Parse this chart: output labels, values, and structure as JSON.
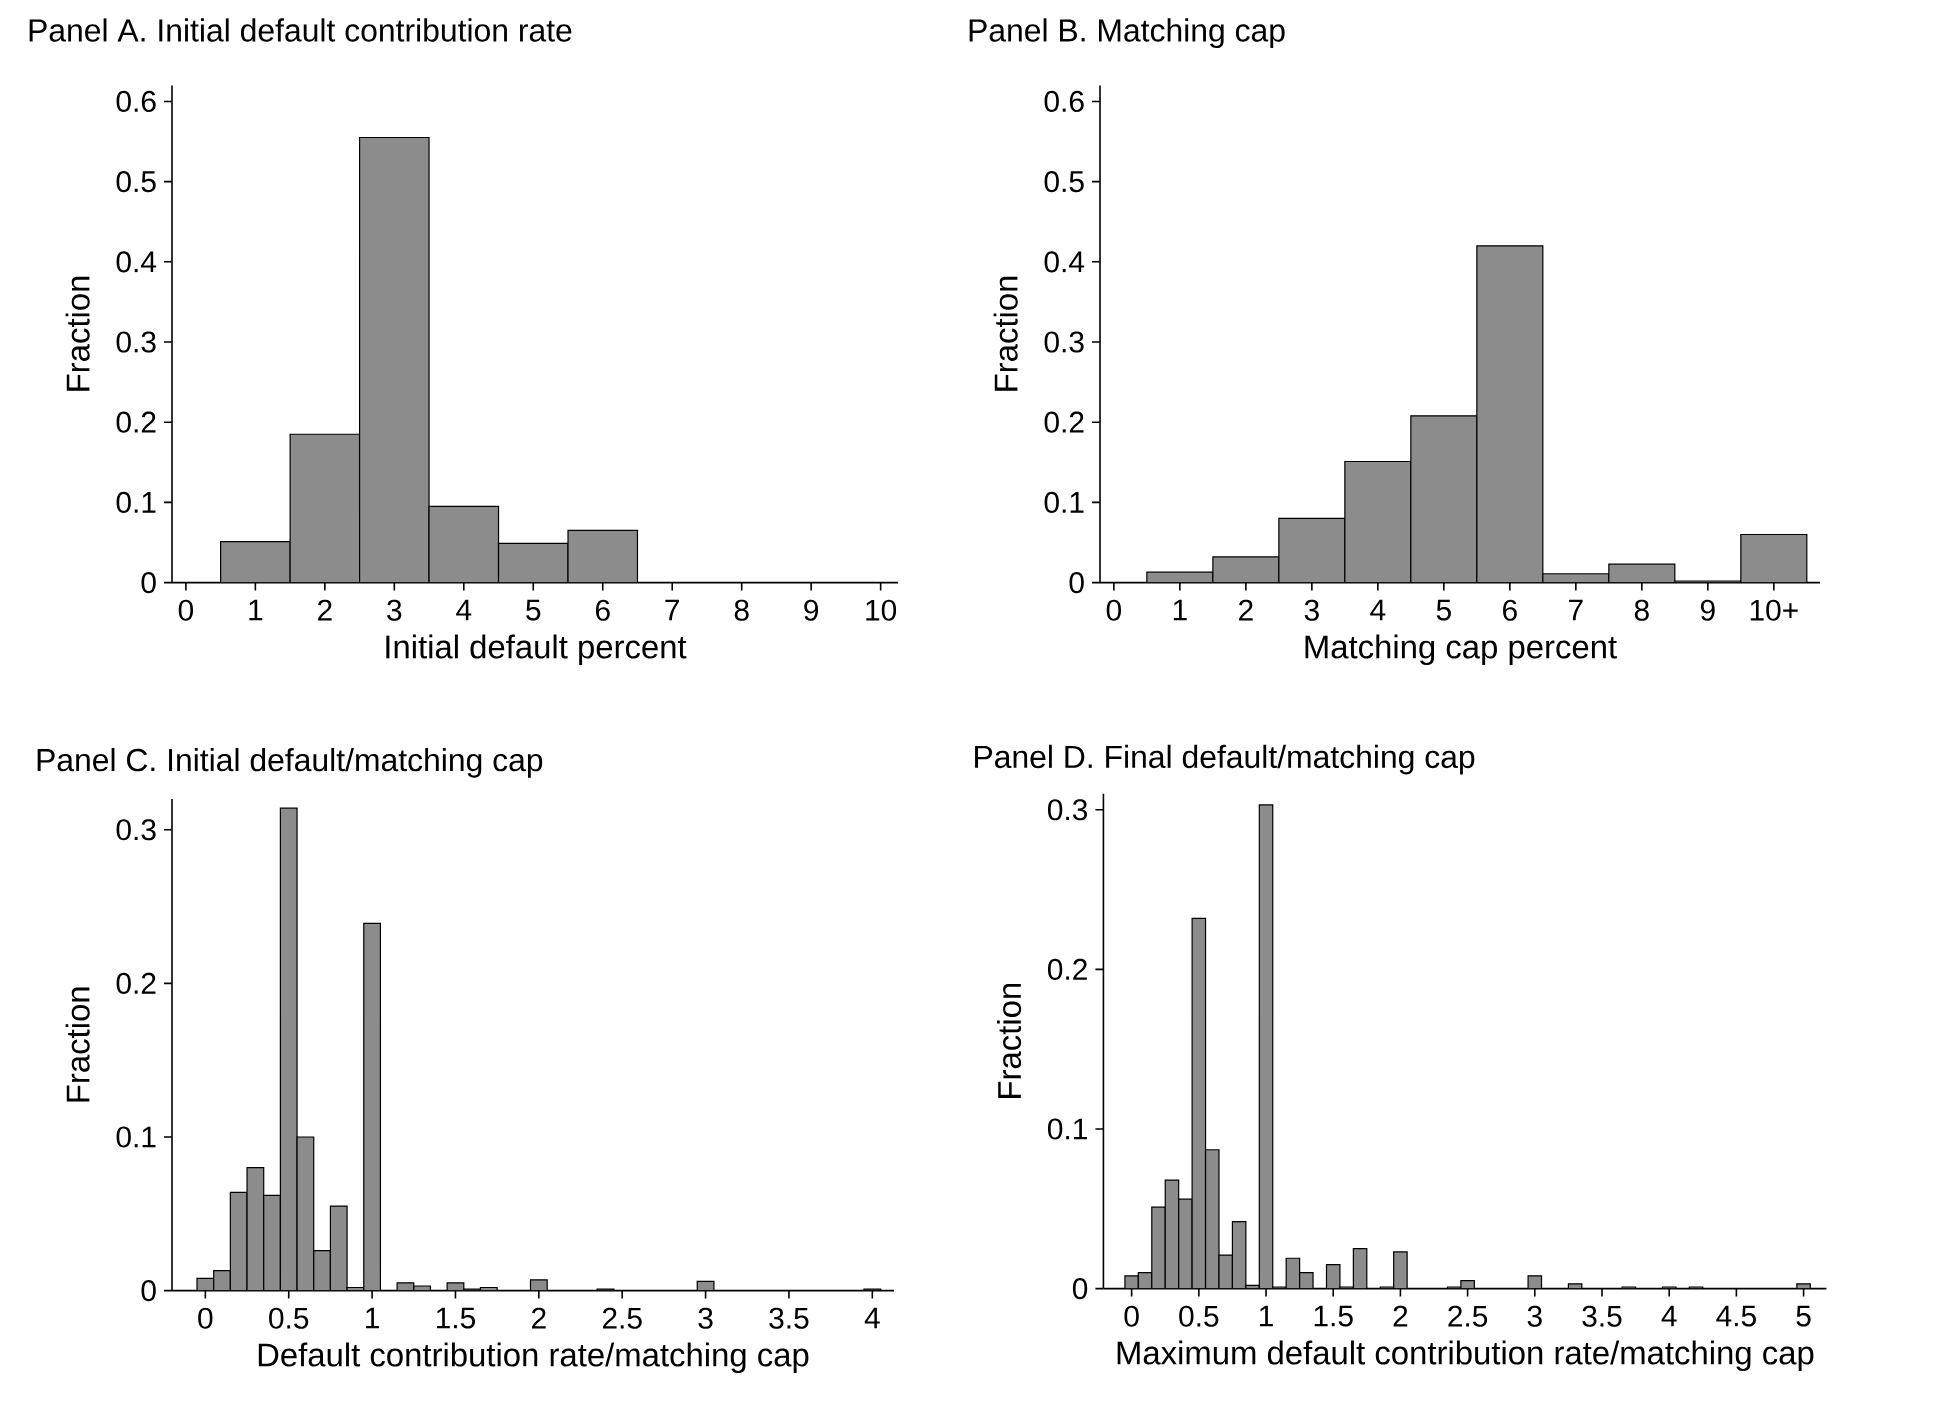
{
  "chart_data": [
    {
      "type": "histogram",
      "title": "Panel A. Initial default contribution rate",
      "xlabel": "Initial default percent",
      "ylabel": "Fraction",
      "color": "#8c8c8c",
      "bins": [
        0.5,
        1.5,
        2.5,
        3.5,
        4.5,
        5.5,
        6.5
      ],
      "values": [
        0.051,
        0.185,
        0.555,
        0.095,
        0.049,
        0.065
      ],
      "xlim": [
        -0.2,
        10.25
      ],
      "ylim": [
        0,
        0.62
      ],
      "xticks": [
        0,
        1,
        2,
        3,
        4,
        5,
        6,
        7,
        8,
        9,
        10
      ],
      "yticks": [
        0,
        0.1,
        0.2,
        0.3,
        0.4,
        0.5,
        0.6
      ]
    },
    {
      "type": "histogram",
      "title": "Panel B. Matching cap",
      "xlabel": "Matching cap percent",
      "ylabel": "Fraction",
      "color": "#8c8c8c",
      "bins": [
        0.5,
        1.5,
        2.5,
        3.5,
        4.5,
        5.5,
        6.5,
        7.5,
        8.5,
        9.5,
        10.5
      ],
      "values": [
        0.013,
        0.032,
        0.08,
        0.151,
        0.208,
        0.42,
        0.011,
        0.023,
        0.002,
        0.06
      ],
      "xlim": [
        -0.21,
        10.7
      ],
      "ylim": [
        0,
        0.62
      ],
      "xticks": [
        0,
        1,
        2,
        3,
        4,
        5,
        6,
        7,
        8,
        9,
        {
          "value": 10,
          "label": "10+"
        }
      ],
      "yticks": [
        0,
        0.1,
        0.2,
        0.3,
        0.4,
        0.5,
        0.6
      ]
    },
    {
      "type": "histogram",
      "title": "Panel C. Initial default/matching cap",
      "xlabel": "Default contribution rate/matching cap",
      "ylabel": "Fraction",
      "color": "#8c8c8c",
      "bins": [
        -0.05,
        0.05,
        0.15,
        0.25,
        0.35,
        0.45,
        0.55,
        0.65,
        0.75,
        0.85,
        0.95,
        1.05,
        1.15,
        1.25,
        1.35,
        1.45,
        1.55,
        1.65,
        1.75,
        1.85,
        1.95,
        2.05,
        2.15,
        2.25,
        2.35,
        2.45,
        2.55,
        2.65,
        2.75,
        2.85,
        2.95,
        3.05,
        3.15,
        3.25,
        3.35,
        3.45,
        3.55,
        3.65,
        3.75,
        3.85,
        3.95,
        4.05
      ],
      "values": [
        0.008,
        0.013,
        0.064,
        0.08,
        0.062,
        0.314,
        0.1,
        0.026,
        0.055,
        0.002,
        0.239,
        0,
        0.005,
        0.003,
        0,
        0.005,
        0.001,
        0.002,
        0,
        0,
        0.007,
        0,
        0,
        0,
        0.001,
        0,
        0,
        0,
        0,
        0,
        0.006,
        0,
        0,
        0,
        0,
        0,
        0,
        0,
        0,
        0,
        0.001
      ],
      "xlim": [
        -0.2,
        4.13
      ],
      "ylim": [
        0,
        0.32
      ],
      "xticks": [
        0,
        0.5,
        1,
        1.5,
        2,
        2.5,
        3,
        3.5,
        4
      ],
      "yticks": [
        0,
        0.1,
        0.2,
        0.3
      ]
    },
    {
      "type": "histogram",
      "title": "Panel D. Final default/matching cap",
      "xlabel": "Maximum default contribution rate/matching cap",
      "ylabel": "Fraction",
      "color": "#8c8c8c",
      "bins": [
        -0.05,
        0.05,
        0.15,
        0.25,
        0.35,
        0.45,
        0.55,
        0.65,
        0.75,
        0.85,
        0.95,
        1.05,
        1.15,
        1.25,
        1.35,
        1.45,
        1.55,
        1.65,
        1.75,
        1.85,
        1.95,
        2.05,
        2.15,
        2.25,
        2.35,
        2.45,
        2.55,
        2.65,
        2.75,
        2.85,
        2.95,
        3.05,
        3.15,
        3.25,
        3.35,
        3.45,
        3.55,
        3.65,
        3.75,
        3.85,
        3.95,
        4.05,
        4.15,
        4.25,
        4.35,
        4.45,
        4.55,
        4.65,
        4.75,
        4.85,
        4.95,
        5.05
      ],
      "values": [
        0.008,
        0.01,
        0.051,
        0.068,
        0.056,
        0.232,
        0.087,
        0.021,
        0.042,
        0.002,
        0.303,
        0.001,
        0.019,
        0.01,
        0,
        0.015,
        0.001,
        0.025,
        0,
        0.001,
        0.023,
        0,
        0,
        0,
        0.001,
        0.005,
        0,
        0,
        0,
        0,
        0.008,
        0,
        0,
        0.003,
        0,
        0,
        0,
        0.001,
        0,
        0,
        0.001,
        0,
        0.001,
        0,
        0,
        0,
        0,
        0,
        0,
        0,
        0.003
      ],
      "xlim": [
        -0.21,
        5.17
      ],
      "ylim": [
        0,
        0.31
      ],
      "xticks": [
        0,
        0.5,
        1,
        1.5,
        2,
        2.5,
        3,
        3.5,
        4,
        4.5,
        5
      ],
      "yticks": [
        0,
        0.1,
        0.2,
        0.3
      ]
    }
  ]
}
